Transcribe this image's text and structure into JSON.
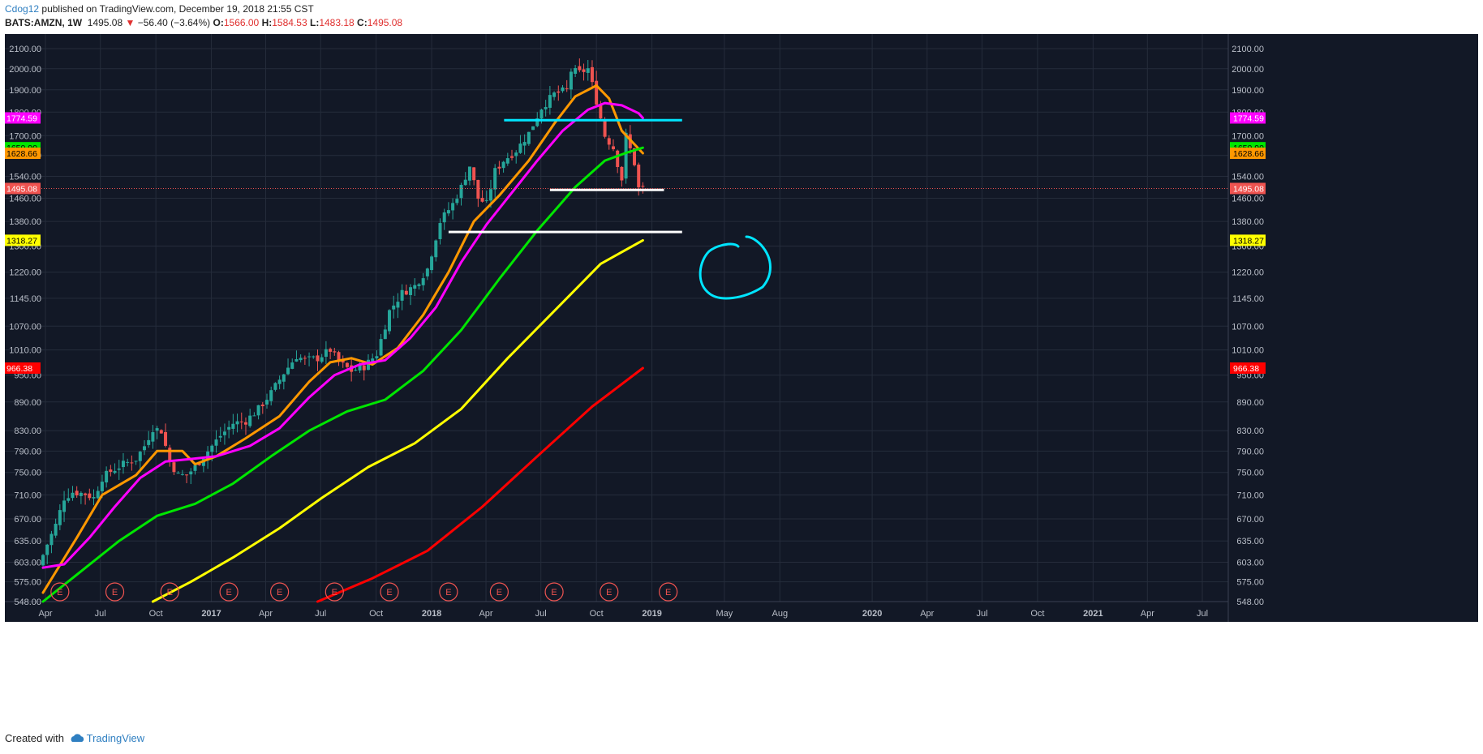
{
  "header": {
    "author": "Cdog12",
    "published_text": "published on TradingView.com, December 19, 2018 21:55 CST",
    "symbol": "BATS:AMZN, 1W",
    "last": "1495.08",
    "change": "−56.40 (−3.64%)",
    "open_label": "O:",
    "open": "1566.00",
    "high_label": "H:",
    "high": "1584.53",
    "low_label": "L:",
    "low": "1483.18",
    "close_label": "C:",
    "close": "1495.08"
  },
  "footer": {
    "created_with": "Created with",
    "brand": "TradingView"
  },
  "colors": {
    "background": "#121826",
    "grid": "#252c3b",
    "text": "#b9bec8",
    "up": "#26a69a",
    "down": "#ef5350",
    "ema_orange": "#ff9800",
    "ema_magenta": "#ff00ff",
    "ema_green": "#00e600",
    "ema_yellow": "#ffff00",
    "ema_red": "#ff0000",
    "cyan": "#00e5ff",
    "white": "#ffffff"
  },
  "chart_data": {
    "type": "line",
    "symbol": "BATS:AMZN",
    "interval": "1W",
    "price_scale": "log",
    "ylim": [
      548,
      2100
    ],
    "y_ticks": [
      2100,
      2000,
      1900,
      1800,
      1700,
      1620,
      1540,
      1460,
      1380,
      1300,
      1220,
      1145,
      1070,
      1010,
      950,
      890,
      830,
      790,
      750,
      710,
      670,
      635,
      603,
      575,
      548
    ],
    "y_tick_labels": [
      "2100.00",
      "2000.00",
      "1900.00",
      "1800.00",
      "1700.00",
      "1620.00",
      "1540.00",
      "1460.00",
      "1380.00",
      "1300.00",
      "1220.00",
      "1145.00",
      "1070.00",
      "1010.00",
      "950.00",
      "890.00",
      "830.00",
      "790.00",
      "750.00",
      "710.00",
      "670.00",
      "635.00",
      "603.00",
      "575.00",
      "548.00"
    ],
    "x_ticks": [
      {
        "label": "Apr",
        "date": "2016-04-01"
      },
      {
        "label": "Jul",
        "date": "2016-07-01"
      },
      {
        "label": "Oct",
        "date": "2016-10-01"
      },
      {
        "label": "2017",
        "date": "2017-01-01"
      },
      {
        "label": "Apr",
        "date": "2017-04-01"
      },
      {
        "label": "Jul",
        "date": "2017-07-01"
      },
      {
        "label": "Oct",
        "date": "2017-10-01"
      },
      {
        "label": "2018",
        "date": "2018-01-01"
      },
      {
        "label": "Apr",
        "date": "2018-04-01"
      },
      {
        "label": "Jul",
        "date": "2018-07-01"
      },
      {
        "label": "Oct",
        "date": "2018-10-01"
      },
      {
        "label": "2019",
        "date": "2019-01-01"
      },
      {
        "label": "May",
        "date": "2019-05-01"
      },
      {
        "label": "Aug",
        "date": "2019-08-01"
      },
      {
        "label": "2020",
        "date": "2020-01-01"
      },
      {
        "label": "Apr",
        "date": "2020-04-01"
      },
      {
        "label": "Jul",
        "date": "2020-07-01"
      },
      {
        "label": "Oct",
        "date": "2020-10-01"
      },
      {
        "label": "2021",
        "date": "2021-01-01"
      },
      {
        "label": "Apr",
        "date": "2021-04-01"
      },
      {
        "label": "Jul",
        "date": "2021-07-01"
      }
    ],
    "price_path": [
      [
        "2016-03-28",
        598
      ],
      [
        "2016-04-11",
        630
      ],
      [
        "2016-04-25",
        660
      ],
      [
        "2016-05-09",
        705
      ],
      [
        "2016-05-23",
        715
      ],
      [
        "2016-06-13",
        712
      ],
      [
        "2016-06-27",
        705
      ],
      [
        "2016-07-11",
        740
      ],
      [
        "2016-07-25",
        752
      ],
      [
        "2016-08-15",
        765
      ],
      [
        "2016-09-05",
        775
      ],
      [
        "2016-09-19",
        800
      ],
      [
        "2016-10-03",
        835
      ],
      [
        "2016-10-17",
        830
      ],
      [
        "2016-10-31",
        770
      ],
      [
        "2016-11-14",
        745
      ],
      [
        "2016-11-28",
        745
      ],
      [
        "2016-12-12",
        760
      ],
      [
        "2017-01-02",
        790
      ],
      [
        "2017-01-23",
        820
      ],
      [
        "2017-02-13",
        845
      ],
      [
        "2017-03-06",
        850
      ],
      [
        "2017-03-27",
        875
      ],
      [
        "2017-04-17",
        910
      ],
      [
        "2017-05-08",
        955
      ],
      [
        "2017-05-29",
        995
      ],
      [
        "2017-06-12",
        985
      ],
      [
        "2017-07-03",
        990
      ],
      [
        "2017-07-24",
        1010
      ],
      [
        "2017-08-07",
        980
      ],
      [
        "2017-08-28",
        960
      ],
      [
        "2017-09-18",
        970
      ],
      [
        "2017-10-09",
        1000
      ],
      [
        "2017-10-30",
        1110
      ],
      [
        "2017-11-20",
        1160
      ],
      [
        "2017-12-11",
        1180
      ],
      [
        "2018-01-01",
        1230
      ],
      [
        "2018-01-22",
        1380
      ],
      [
        "2018-02-12",
        1440
      ],
      [
        "2018-02-26",
        1500
      ],
      [
        "2018-03-12",
        1580
      ],
      [
        "2018-03-26",
        1460
      ],
      [
        "2018-04-09",
        1440
      ],
      [
        "2018-04-23",
        1560
      ],
      [
        "2018-05-07",
        1600
      ],
      [
        "2018-05-28",
        1640
      ],
      [
        "2018-06-18",
        1710
      ],
      [
        "2018-07-09",
        1820
      ],
      [
        "2018-07-30",
        1880
      ],
      [
        "2018-08-20",
        1900
      ],
      [
        "2018-08-27",
        1990
      ],
      [
        "2018-09-10",
        1980
      ],
      [
        "2018-09-24",
        2000
      ],
      [
        "2018-10-08",
        1850
      ],
      [
        "2018-10-22",
        1700
      ],
      [
        "2018-11-05",
        1650
      ],
      [
        "2018-11-19",
        1530
      ],
      [
        "2018-11-26",
        1700
      ],
      [
        "2018-12-10",
        1590
      ],
      [
        "2018-12-17",
        1495
      ]
    ],
    "moving_averages": [
      {
        "color": "#ff9800",
        "points": [
          [
            "2016-03-28",
            560
          ],
          [
            "2016-05-23",
            640
          ],
          [
            "2016-07-04",
            710
          ],
          [
            "2016-08-29",
            745
          ],
          [
            "2016-10-03",
            790
          ],
          [
            "2016-11-14",
            790
          ],
          [
            "2016-12-05",
            765
          ],
          [
            "2017-01-09",
            780
          ],
          [
            "2017-02-27",
            815
          ],
          [
            "2017-04-24",
            860
          ],
          [
            "2017-06-12",
            935
          ],
          [
            "2017-07-17",
            980
          ],
          [
            "2017-08-21",
            990
          ],
          [
            "2017-09-25",
            975
          ],
          [
            "2017-11-06",
            1015
          ],
          [
            "2017-12-18",
            1100
          ],
          [
            "2018-01-29",
            1220
          ],
          [
            "2018-03-12",
            1380
          ],
          [
            "2018-04-23",
            1470
          ],
          [
            "2018-06-11",
            1600
          ],
          [
            "2018-07-23",
            1750
          ],
          [
            "2018-08-27",
            1870
          ],
          [
            "2018-10-01",
            1920
          ],
          [
            "2018-10-22",
            1860
          ],
          [
            "2018-11-12",
            1720
          ],
          [
            "2018-12-17",
            1628.66
          ]
        ]
      },
      {
        "color": "#ff00ff",
        "points": [
          [
            "2016-03-28",
            595
          ],
          [
            "2016-05-02",
            600
          ],
          [
            "2016-06-13",
            640
          ],
          [
            "2016-07-25",
            690
          ],
          [
            "2016-09-05",
            740
          ],
          [
            "2016-10-17",
            770
          ],
          [
            "2016-11-28",
            775
          ],
          [
            "2017-01-09",
            780
          ],
          [
            "2017-03-06",
            800
          ],
          [
            "2017-04-24",
            835
          ],
          [
            "2017-06-12",
            900
          ],
          [
            "2017-07-24",
            950
          ],
          [
            "2017-09-04",
            975
          ],
          [
            "2017-10-16",
            985
          ],
          [
            "2017-11-27",
            1040
          ],
          [
            "2018-01-08",
            1120
          ],
          [
            "2018-02-19",
            1250
          ],
          [
            "2018-04-02",
            1370
          ],
          [
            "2018-05-14",
            1480
          ],
          [
            "2018-06-25",
            1600
          ],
          [
            "2018-08-06",
            1720
          ],
          [
            "2018-09-17",
            1810
          ],
          [
            "2018-10-15",
            1840
          ],
          [
            "2018-11-12",
            1830
          ],
          [
            "2018-12-10",
            1795
          ],
          [
            "2018-12-17",
            1774.59
          ]
        ]
      },
      {
        "color": "#00e600",
        "points": [
          [
            "2016-03-28",
            548
          ],
          [
            "2016-05-23",
            585
          ],
          [
            "2016-08-01",
            635
          ],
          [
            "2016-10-03",
            675
          ],
          [
            "2016-12-05",
            695
          ],
          [
            "2017-02-06",
            730
          ],
          [
            "2017-04-10",
            780
          ],
          [
            "2017-06-12",
            830
          ],
          [
            "2017-08-14",
            870
          ],
          [
            "2017-10-16",
            895
          ],
          [
            "2017-12-18",
            960
          ],
          [
            "2018-02-19",
            1060
          ],
          [
            "2018-04-23",
            1200
          ],
          [
            "2018-06-25",
            1350
          ],
          [
            "2018-08-27",
            1500
          ],
          [
            "2018-10-15",
            1600
          ],
          [
            "2018-11-19",
            1630
          ],
          [
            "2018-12-17",
            1650.9
          ]
        ]
      },
      {
        "color": "#ffff00",
        "points": [
          [
            "2016-09-26",
            548
          ],
          [
            "2016-11-28",
            575
          ],
          [
            "2017-02-06",
            610
          ],
          [
            "2017-04-24",
            655
          ],
          [
            "2017-07-03",
            705
          ],
          [
            "2017-09-18",
            760
          ],
          [
            "2017-12-04",
            805
          ],
          [
            "2018-02-19",
            875
          ],
          [
            "2018-05-07",
            990
          ],
          [
            "2018-07-23",
            1110
          ],
          [
            "2018-10-08",
            1245
          ],
          [
            "2018-12-17",
            1318.27
          ]
        ]
      },
      {
        "color": "#ff0000",
        "points": [
          [
            "2017-06-26",
            548
          ],
          [
            "2017-09-25",
            580
          ],
          [
            "2017-12-25",
            620
          ],
          [
            "2018-03-26",
            690
          ],
          [
            "2018-06-25",
            780
          ],
          [
            "2018-09-24",
            880
          ],
          [
            "2018-12-17",
            966.38
          ]
        ]
      }
    ],
    "drawings": [
      {
        "type": "hline",
        "color": "#00e5ff",
        "price": 1765,
        "from": "2018-05-01",
        "to": "2019-02-20"
      },
      {
        "type": "hline",
        "color": "#ffffff",
        "price": 1490,
        "from": "2018-07-16",
        "to": "2019-01-21"
      },
      {
        "type": "hline",
        "color": "#ffffff",
        "price": 1345,
        "from": "2018-01-29",
        "to": "2019-02-20"
      }
    ],
    "earnings_dates": [
      "2016-04-25",
      "2016-07-25",
      "2016-10-24",
      "2017-01-30",
      "2017-04-24",
      "2017-07-24",
      "2017-10-23",
      "2018-01-29",
      "2018-04-23",
      "2018-07-23",
      "2018-10-22",
      "2019-01-28"
    ],
    "earnings_label": "E",
    "last_price": 1495.08,
    "price_tags": [
      {
        "value": 1774.59,
        "label": "1774.59",
        "bg": "#ff00ff",
        "fg": "#ffffff"
      },
      {
        "value": 1650.9,
        "label": "1650.90",
        "bg": "#00e600",
        "fg": "#000000"
      },
      {
        "value": 1628.66,
        "label": "1628.66",
        "bg": "#ff9800",
        "fg": "#000000"
      },
      {
        "value": 1495.08,
        "label": "1495.08",
        "bg": "#ef5350",
        "fg": "#ffffff"
      },
      {
        "value": 1318.27,
        "label": "1318.27",
        "bg": "#ffff00",
        "fg": "#000000"
      },
      {
        "value": 966.38,
        "label": "966.38",
        "bg": "#ff0000",
        "fg": "#ffffff"
      }
    ]
  }
}
